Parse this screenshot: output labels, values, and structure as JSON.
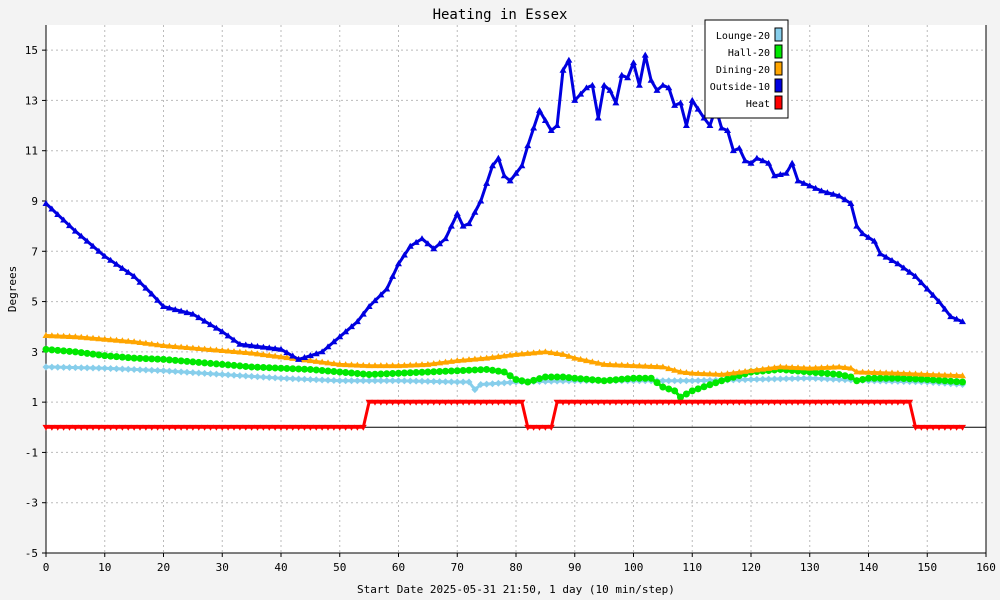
{
  "chart_data": {
    "type": "line",
    "title": "Heating in Essex",
    "xlabel": "Start Date 2025-05-31 21:50, 1 day (10 min/step)",
    "ylabel": "Degrees",
    "xlim": [
      0,
      160
    ],
    "ylim": [
      -5,
      16
    ],
    "x_ticks": [
      0,
      10,
      20,
      30,
      40,
      50,
      60,
      70,
      80,
      90,
      100,
      110,
      120,
      130,
      140,
      150,
      160
    ],
    "y_ticks": [
      -5,
      -3,
      -1,
      1,
      3,
      5,
      7,
      9,
      11,
      13,
      15
    ],
    "grid": true,
    "legend_position": "top-right",
    "series": [
      {
        "name": "Lounge-20",
        "color": "#87ceeb",
        "marker": "diamond",
        "points": [
          [
            0,
            2.4
          ],
          [
            10,
            2.35
          ],
          [
            20,
            2.25
          ],
          [
            30,
            2.1
          ],
          [
            40,
            1.95
          ],
          [
            50,
            1.85
          ],
          [
            60,
            1.85
          ],
          [
            70,
            1.8
          ],
          [
            72,
            1.8
          ],
          [
            73,
            1.5
          ],
          [
            74,
            1.7
          ],
          [
            80,
            1.8
          ],
          [
            90,
            1.85
          ],
          [
            100,
            1.85
          ],
          [
            110,
            1.85
          ],
          [
            120,
            1.9
          ],
          [
            130,
            1.95
          ],
          [
            140,
            1.85
          ],
          [
            150,
            1.8
          ],
          [
            156,
            1.7
          ]
        ]
      },
      {
        "name": "Hall-20",
        "color": "#00e800",
        "marker": "circle",
        "points": [
          [
            0,
            3.1
          ],
          [
            5,
            3.0
          ],
          [
            10,
            2.85
          ],
          [
            15,
            2.75
          ],
          [
            20,
            2.7
          ],
          [
            25,
            2.6
          ],
          [
            30,
            2.5
          ],
          [
            35,
            2.4
          ],
          [
            40,
            2.35
          ],
          [
            45,
            2.3
          ],
          [
            50,
            2.2
          ],
          [
            55,
            2.1
          ],
          [
            60,
            2.15
          ],
          [
            65,
            2.2
          ],
          [
            70,
            2.25
          ],
          [
            75,
            2.3
          ],
          [
            78,
            2.2
          ],
          [
            80,
            1.9
          ],
          [
            82,
            1.8
          ],
          [
            85,
            2.0
          ],
          [
            88,
            2.0
          ],
          [
            90,
            1.95
          ],
          [
            95,
            1.85
          ],
          [
            100,
            1.95
          ],
          [
            103,
            1.95
          ],
          [
            105,
            1.6
          ],
          [
            107,
            1.45
          ],
          [
            108,
            1.2
          ],
          [
            110,
            1.45
          ],
          [
            115,
            1.85
          ],
          [
            120,
            2.2
          ],
          [
            125,
            2.3
          ],
          [
            130,
            2.2
          ],
          [
            135,
            2.1
          ],
          [
            137,
            2.0
          ],
          [
            138,
            1.85
          ],
          [
            140,
            1.95
          ],
          [
            145,
            1.95
          ],
          [
            150,
            1.9
          ],
          [
            156,
            1.8
          ]
        ]
      },
      {
        "name": "Dining-20",
        "color": "#ffa500",
        "marker": "triangle",
        "points": [
          [
            0,
            3.65
          ],
          [
            5,
            3.6
          ],
          [
            10,
            3.5
          ],
          [
            15,
            3.4
          ],
          [
            20,
            3.25
          ],
          [
            25,
            3.15
          ],
          [
            30,
            3.05
          ],
          [
            35,
            2.95
          ],
          [
            40,
            2.8
          ],
          [
            45,
            2.65
          ],
          [
            50,
            2.5
          ],
          [
            55,
            2.45
          ],
          [
            60,
            2.45
          ],
          [
            65,
            2.5
          ],
          [
            70,
            2.65
          ],
          [
            75,
            2.75
          ],
          [
            80,
            2.9
          ],
          [
            85,
            3.0
          ],
          [
            88,
            2.9
          ],
          [
            90,
            2.75
          ],
          [
            95,
            2.5
          ],
          [
            100,
            2.45
          ],
          [
            105,
            2.4
          ],
          [
            108,
            2.2
          ],
          [
            110,
            2.15
          ],
          [
            115,
            2.1
          ],
          [
            120,
            2.25
          ],
          [
            125,
            2.4
          ],
          [
            130,
            2.35
          ],
          [
            135,
            2.4
          ],
          [
            137,
            2.35
          ],
          [
            138,
            2.2
          ],
          [
            145,
            2.15
          ],
          [
            150,
            2.1
          ],
          [
            156,
            2.05
          ]
        ]
      },
      {
        "name": "Outside-10",
        "color": "#0000e0",
        "marker": "triangle",
        "points": [
          [
            0,
            8.9
          ],
          [
            5,
            7.8
          ],
          [
            10,
            6.8
          ],
          [
            15,
            6.0
          ],
          [
            18,
            5.3
          ],
          [
            20,
            4.8
          ],
          [
            25,
            4.5
          ],
          [
            30,
            3.8
          ],
          [
            33,
            3.3
          ],
          [
            40,
            3.1
          ],
          [
            43,
            2.7
          ],
          [
            47,
            3.0
          ],
          [
            50,
            3.6
          ],
          [
            53,
            4.2
          ],
          [
            55,
            4.8
          ],
          [
            58,
            5.5
          ],
          [
            60,
            6.5
          ],
          [
            62,
            7.2
          ],
          [
            64,
            7.5
          ],
          [
            66,
            7.1
          ],
          [
            68,
            7.5
          ],
          [
            70,
            8.5
          ],
          [
            71,
            8.0
          ],
          [
            72,
            8.1
          ],
          [
            74,
            9.0
          ],
          [
            76,
            10.4
          ],
          [
            77,
            10.7
          ],
          [
            78,
            10.0
          ],
          [
            79,
            9.8
          ],
          [
            81,
            10.4
          ],
          [
            82,
            11.2
          ],
          [
            84,
            12.6
          ],
          [
            85,
            12.2
          ],
          [
            86,
            11.8
          ],
          [
            87,
            12.0
          ],
          [
            88,
            14.2
          ],
          [
            89,
            14.6
          ],
          [
            90,
            13.0
          ],
          [
            92,
            13.5
          ],
          [
            93,
            13.6
          ],
          [
            94,
            12.3
          ],
          [
            95,
            13.6
          ],
          [
            96,
            13.4
          ],
          [
            97,
            12.9
          ],
          [
            98,
            14.0
          ],
          [
            99,
            13.9
          ],
          [
            100,
            14.5
          ],
          [
            101,
            13.6
          ],
          [
            102,
            14.8
          ],
          [
            103,
            13.8
          ],
          [
            104,
            13.4
          ],
          [
            105,
            13.6
          ],
          [
            106,
            13.5
          ],
          [
            107,
            12.8
          ],
          [
            108,
            12.9
          ],
          [
            109,
            12.0
          ],
          [
            110,
            13.0
          ],
          [
            112,
            12.3
          ],
          [
            113,
            12.0
          ],
          [
            114,
            12.7
          ],
          [
            115,
            11.9
          ],
          [
            116,
            11.8
          ],
          [
            117,
            11.0
          ],
          [
            118,
            11.1
          ],
          [
            119,
            10.6
          ],
          [
            120,
            10.5
          ],
          [
            121,
            10.7
          ],
          [
            122,
            10.6
          ],
          [
            123,
            10.5
          ],
          [
            124,
            10.0
          ],
          [
            126,
            10.1
          ],
          [
            127,
            10.5
          ],
          [
            128,
            9.8
          ],
          [
            130,
            9.6
          ],
          [
            132,
            9.4
          ],
          [
            135,
            9.2
          ],
          [
            137,
            8.9
          ],
          [
            138,
            8.0
          ],
          [
            139,
            7.7
          ],
          [
            141,
            7.4
          ],
          [
            142,
            6.9
          ],
          [
            145,
            6.5
          ],
          [
            148,
            6.0
          ],
          [
            150,
            5.5
          ],
          [
            152,
            5.0
          ],
          [
            154,
            4.4
          ],
          [
            156,
            4.2
          ]
        ]
      },
      {
        "name": "Heat",
        "color": "#ff0000",
        "marker": "triangle-down",
        "points": [
          [
            0,
            0
          ],
          [
            54,
            0
          ],
          [
            55,
            1
          ],
          [
            81,
            1
          ],
          [
            82,
            0
          ],
          [
            86,
            0
          ],
          [
            87,
            1
          ],
          [
            147,
            1
          ],
          [
            148,
            0
          ],
          [
            156,
            0
          ]
        ]
      }
    ]
  }
}
